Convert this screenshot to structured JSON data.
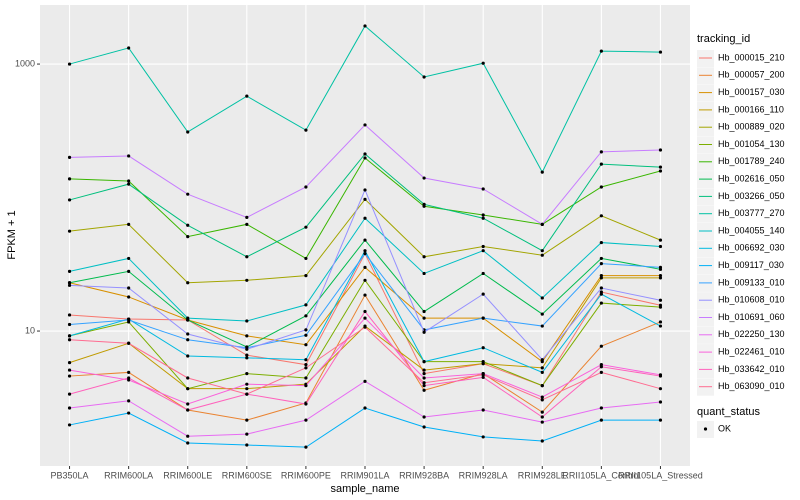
{
  "chart_data": {
    "type": "line",
    "log_y": true,
    "grid": true,
    "x_label": "sample_name",
    "y_label": "FPKM + 1",
    "legend_title": "tracking_id",
    "status_legend": {
      "title": "quant_status",
      "entries": [
        "OK"
      ]
    },
    "categories": [
      "PB350LA",
      "RRIM600LA",
      "RRIM600LE",
      "RRIM600SE",
      "RRIM600PE",
      "RRIM901LA",
      "RRIM928BA",
      "RRIM928LA",
      "RRIM928LE",
      "RRII105LA_Control",
      "RRII105LA_Stressed"
    ],
    "ylim": [
      0.975,
      2770
    ],
    "yticks": [
      10,
      1000
    ],
    "series": [
      {
        "name": "Hb_000015_210",
        "color": "#F8766D",
        "values": [
          13.2,
          12.3,
          12.1,
          6.6,
          5.6,
          38,
          4.8,
          5.7,
          3.9,
          19.6,
          15.6
        ]
      },
      {
        "name": "Hb_000057_200",
        "color": "#EA8331",
        "values": [
          4.6,
          4.9,
          2.56,
          2.15,
          2.89,
          18.6,
          3.6,
          4.8,
          2.47,
          7.7,
          11.7
        ]
      },
      {
        "name": "Hb_000157_030",
        "color": "#D89000",
        "values": [
          23,
          18,
          12.1,
          9.2,
          7.9,
          30,
          12.5,
          12.5,
          5.9,
          26,
          26
        ]
      },
      {
        "name": "Hb_000166_110",
        "color": "#C09B00",
        "values": [
          5.8,
          8.1,
          3.7,
          3.7,
          4.0,
          10.9,
          5.1,
          5.7,
          5.3,
          25,
          25
        ]
      },
      {
        "name": "Hb_000889_020",
        "color": "#A3A500",
        "values": [
          56,
          63,
          23,
          24,
          26,
          97,
          36,
          43,
          37,
          73,
          48
        ]
      },
      {
        "name": "Hb_001054_130",
        "color": "#7CAE00",
        "values": [
          9.2,
          11.7,
          3.7,
          4.8,
          4.45,
          24,
          5.9,
          5.9,
          3.9,
          16.2,
          15.1
        ]
      },
      {
        "name": "Hb_001789_240",
        "color": "#39B600",
        "values": [
          138,
          133,
          51,
          63,
          35,
          198,
          86,
          74,
          63,
          120,
          158
        ]
      },
      {
        "name": "Hb_002616_050",
        "color": "#00BB4E",
        "values": [
          23,
          28,
          12.1,
          7.6,
          13,
          48,
          14,
          27,
          13.4,
          35,
          29
        ]
      },
      {
        "name": "Hb_003266_050",
        "color": "#00BF7D",
        "values": [
          96,
          126,
          62,
          36,
          60,
          212,
          89,
          70,
          40,
          178,
          169
        ]
      },
      {
        "name": "Hb_003777_270",
        "color": "#00C1A3",
        "values": [
          1000,
          1320,
          310,
          575,
          320,
          1930,
          800,
          1015,
          155,
          1250,
          1230
        ]
      },
      {
        "name": "Hb_004055_140",
        "color": "#00BFC4",
        "values": [
          28,
          35,
          12.5,
          11.9,
          15.7,
          70,
          27,
          40,
          17.7,
          46,
          43
        ]
      },
      {
        "name": "Hb_006692_030",
        "color": "#00BAE0",
        "values": [
          9.2,
          12.3,
          6.5,
          6.3,
          6.1,
          40,
          5.9,
          7.5,
          4.9,
          18.9,
          10.9
        ]
      },
      {
        "name": "Hb_009117_030",
        "color": "#00B0F6",
        "values": [
          1.98,
          2.43,
          1.45,
          1.4,
          1.35,
          2.65,
          1.91,
          1.61,
          1.5,
          2.15,
          2.15
        ]
      },
      {
        "name": "Hb_009133_010",
        "color": "#35A2FF",
        "values": [
          11.2,
          12.1,
          8.6,
          7.5,
          9.3,
          38,
          10.2,
          12.5,
          10.9,
          32,
          30
        ]
      },
      {
        "name": "Hb_010608_010",
        "color": "#9590FF",
        "values": [
          22,
          21,
          9.5,
          7.3,
          10.2,
          114,
          9.8,
          18.9,
          6.1,
          21,
          17
        ]
      },
      {
        "name": "Hb_010691_060",
        "color": "#C77CFF",
        "values": [
          200,
          205,
          106,
          71,
          120,
          350,
          140,
          116,
          63,
          220,
          227
        ]
      },
      {
        "name": "Hb_022250_130",
        "color": "#E76BF3",
        "values": [
          2.65,
          3.0,
          1.63,
          1.69,
          2.15,
          4.2,
          2.27,
          2.56,
          2.08,
          2.65,
          2.94
        ]
      },
      {
        "name": "Hb_022461_010",
        "color": "#FA62DB",
        "values": [
          5.1,
          4.3,
          2.84,
          4.0,
          3.9,
          12.5,
          4.45,
          4.8,
          3.2,
          5.6,
          4.7
        ]
      },
      {
        "name": "Hb_033642_010",
        "color": "#FF62BC",
        "values": [
          3.37,
          4.45,
          2.56,
          3.37,
          2.84,
          14,
          3.9,
          4.5,
          2.27,
          5.4,
          4.6
        ]
      },
      {
        "name": "Hb_063090_010",
        "color": "#FF6C91",
        "values": [
          8.6,
          8.1,
          4.45,
          3.37,
          5.3,
          10.7,
          4.1,
          4.7,
          3.05,
          4.9,
          3.7
        ]
      }
    ]
  }
}
